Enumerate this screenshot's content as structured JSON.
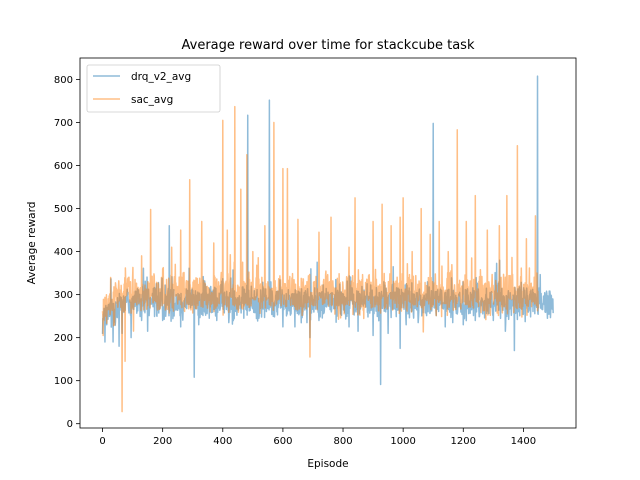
{
  "chart_data": {
    "type": "line",
    "title": "Average reward over time for stackcube task",
    "xlabel": "Episode",
    "ylabel": "Average reward",
    "xlim": [
      -75,
      1575
    ],
    "ylim": [
      -10,
      850
    ],
    "xticks": [
      0,
      200,
      400,
      600,
      800,
      1000,
      1200,
      1400
    ],
    "yticks": [
      0,
      100,
      200,
      300,
      400,
      500,
      600,
      700,
      800
    ],
    "grid": false,
    "legend_position": "upper-left",
    "series": [
      {
        "name": "drq_v2_avg",
        "color": "#1f77b4",
        "alpha": 0.5,
        "n_points": 1500,
        "base_level": 283,
        "noise_amplitude": 35,
        "spikes": [
          [
            8,
            190
          ],
          [
            14,
            230
          ],
          [
            35,
            190
          ],
          [
            55,
            180
          ],
          [
            65,
            210
          ],
          [
            95,
            200
          ],
          [
            130,
            240
          ],
          [
            150,
            215
          ],
          [
            200,
            240
          ],
          [
            222,
            460
          ],
          [
            260,
            225
          ],
          [
            305,
            108
          ],
          [
            320,
            230
          ],
          [
            380,
            240
          ],
          [
            420,
            235
          ],
          [
            470,
            245
          ],
          [
            483,
            717
          ],
          [
            520,
            245
          ],
          [
            555,
            752
          ],
          [
            600,
            225
          ],
          [
            640,
            225
          ],
          [
            680,
            235
          ],
          [
            690,
            200
          ],
          [
            720,
            240
          ],
          [
            780,
            250
          ],
          [
            820,
            225
          ],
          [
            850,
            215
          ],
          [
            900,
            205
          ],
          [
            925,
            91
          ],
          [
            950,
            210
          ],
          [
            990,
            175
          ],
          [
            1010,
            230
          ],
          [
            1050,
            235
          ],
          [
            1100,
            698
          ],
          [
            1140,
            225
          ],
          [
            1165,
            235
          ],
          [
            1200,
            230
          ],
          [
            1240,
            240
          ],
          [
            1300,
            240
          ],
          [
            1340,
            215
          ],
          [
            1370,
            170
          ],
          [
            1400,
            255
          ],
          [
            1447,
            808
          ],
          [
            1480,
            245
          ],
          [
            1500,
            240
          ]
        ]
      },
      {
        "name": "sac_avg",
        "color": "#ff7f0e",
        "alpha": 0.5,
        "n_points": 1450,
        "base_level": 300,
        "noise_amplitude": 40,
        "spikes": [
          [
            2,
            205
          ],
          [
            10,
            250
          ],
          [
            40,
            230
          ],
          [
            65,
            28
          ],
          [
            75,
            145
          ],
          [
            100,
            340
          ],
          [
            130,
            390
          ],
          [
            160,
            498
          ],
          [
            200,
            360
          ],
          [
            230,
            410
          ],
          [
            260,
            450
          ],
          [
            290,
            567
          ],
          [
            330,
            470
          ],
          [
            370,
            420
          ],
          [
            400,
            705
          ],
          [
            415,
            450
          ],
          [
            440,
            737
          ],
          [
            460,
            545
          ],
          [
            480,
            625
          ],
          [
            500,
            400
          ],
          [
            540,
            460
          ],
          [
            570,
            700
          ],
          [
            600,
            593
          ],
          [
            615,
            593
          ],
          [
            650,
            475
          ],
          [
            680,
            330
          ],
          [
            690,
            155
          ],
          [
            720,
            445
          ],
          [
            760,
            480
          ],
          [
            820,
            410
          ],
          [
            840,
            525
          ],
          [
            860,
            330
          ],
          [
            900,
            470
          ],
          [
            930,
            510
          ],
          [
            960,
            460
          ],
          [
            990,
            480
          ],
          [
            1000,
            525
          ],
          [
            1030,
            400
          ],
          [
            1060,
            500
          ],
          [
            1090,
            440
          ],
          [
            1120,
            470
          ],
          [
            1150,
            400
          ],
          [
            1180,
            683
          ],
          [
            1210,
            470
          ],
          [
            1240,
            530
          ],
          [
            1280,
            450
          ],
          [
            1320,
            460
          ],
          [
            1345,
            530
          ],
          [
            1380,
            646
          ],
          [
            1410,
            430
          ],
          [
            1440,
            483
          ],
          [
            1445,
            350
          ]
        ]
      }
    ]
  }
}
